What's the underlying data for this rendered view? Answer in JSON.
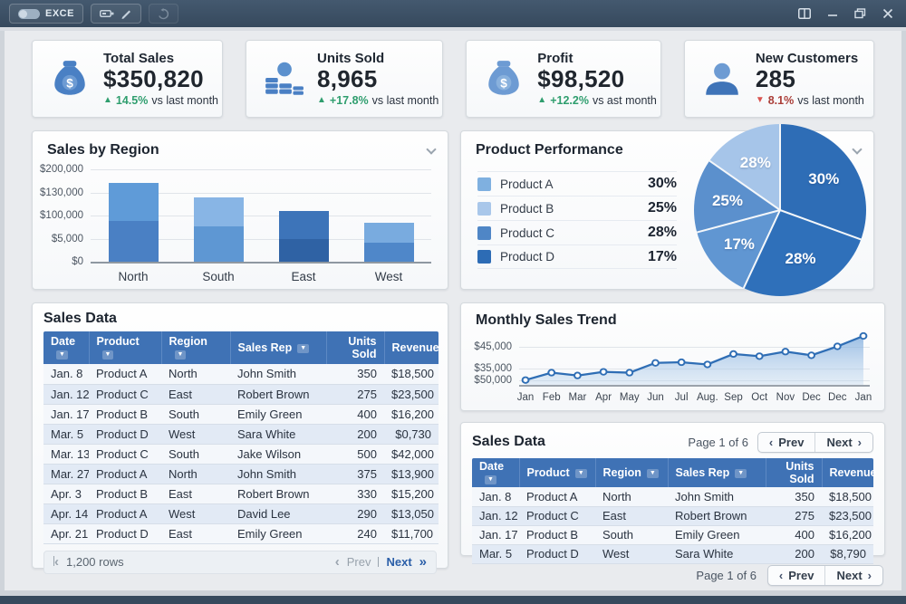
{
  "titlebar": {
    "app_label": "EXCE"
  },
  "kpis": [
    {
      "icon": "money-bag-icon",
      "label": "Total Sales",
      "value": "$350,820",
      "delta": "14.5%",
      "suffix": "vs last month",
      "direction": "up"
    },
    {
      "icon": "coin-stacks-icon",
      "label": "Units Sold",
      "value": "8,965",
      "delta": "+17.8%",
      "suffix": "vs last month",
      "direction": "up"
    },
    {
      "icon": "money-bag-icon",
      "label": "Profit",
      "value": "$98,520",
      "delta": "+12.2%",
      "suffix": "vs ast month",
      "direction": "up"
    },
    {
      "icon": "person-icon",
      "label": "New Customers",
      "value": "285",
      "delta": "8.1%",
      "suffix": "vs last month",
      "direction": "down"
    }
  ],
  "panels": {
    "bar": {
      "title": "Sales by Region"
    },
    "pie": {
      "title": "Product Performance"
    },
    "trend": {
      "title": "Monthly Sales Trend"
    },
    "table": {
      "title": "Sales Data"
    },
    "mini_table": {
      "title": "Sales Data"
    }
  },
  "chart_data": [
    {
      "type": "bar",
      "title": "Sales by Region",
      "stacked": true,
      "categories": [
        "North",
        "South",
        "East",
        "West"
      ],
      "series": [
        {
          "name": "segment-bottom",
          "values": [
            88000,
            76000,
            50000,
            42000
          ]
        },
        {
          "name": "segment-top",
          "values": [
            82000,
            64000,
            60000,
            43000
          ]
        }
      ],
      "totals": [
        170000,
        140000,
        110000,
        85000
      ],
      "y_ticks": [
        "$200,000",
        "$130,000",
        "$100,000",
        "$5,000",
        "$0"
      ],
      "ylim": [
        0,
        200000
      ],
      "bar_colors": [
        {
          "bottom": "#4a80c4",
          "top": "#5f9bd8"
        },
        {
          "bottom": "#5e97d3",
          "top": "#88b5e5"
        },
        {
          "bottom": "#2f62a4",
          "top": "#3d74b9"
        },
        {
          "bottom": "#4f87c9",
          "top": "#79abdf"
        }
      ],
      "grid": true
    },
    {
      "type": "pie",
      "title": "Product Performance",
      "legend": [
        {
          "label": "Product A",
          "value": "30%",
          "color": "#7fb0e0"
        },
        {
          "label": "Product B",
          "value": "25%",
          "color": "#a9c7ea"
        },
        {
          "label": "Product C",
          "value": "28%",
          "color": "#4f86c6"
        },
        {
          "label": "Product D",
          "value": "17%",
          "color": "#2d6cb5"
        }
      ],
      "slices": [
        {
          "label": "30%",
          "start_deg": 0,
          "end_deg": 110,
          "color": "#2e6db6"
        },
        {
          "label": "28%",
          "start_deg": 110,
          "end_deg": 205,
          "color": "#2f70ba"
        },
        {
          "label": "17%",
          "start_deg": 205,
          "end_deg": 255,
          "color": "#6096d2"
        },
        {
          "label": "25%",
          "start_deg": 255,
          "end_deg": 305,
          "color": "#5b90cd"
        },
        {
          "label": "28%",
          "start_deg": 305,
          "end_deg": 360,
          "color": "#a6c5e9"
        }
      ]
    },
    {
      "type": "area",
      "title": "Monthly Sales Trend",
      "x": [
        "Jan",
        "Feb",
        "Mar",
        "Apr",
        "May",
        "Jun",
        "Jul",
        "Aug.",
        "Sep",
        "Oct",
        "Nov",
        "Dec",
        "Dec",
        "Jan"
      ],
      "values": [
        30200,
        33600,
        32300,
        34000,
        33600,
        38100,
        38400,
        37400,
        42200,
        41200,
        43300,
        41600,
        45700,
        50500
      ],
      "y_ticks": [
        "$45,000",
        "$35,000",
        "$50,000"
      ],
      "ylim": [
        28000,
        53000
      ],
      "line_color": "#2f6eb5",
      "grid": true
    }
  ],
  "sales_table": {
    "columns": [
      {
        "label": "Date",
        "sortable": true
      },
      {
        "label": "Product",
        "sortable": true
      },
      {
        "label": "Region",
        "sortable": true
      },
      {
        "label": "Sales Rep",
        "sortable": true
      },
      {
        "label": "Units Sold",
        "sortable": false
      },
      {
        "label": "Revenue",
        "sortable": false
      }
    ],
    "rows": [
      [
        "Jan. 8",
        "Product A",
        "North",
        "John Smith",
        "350",
        "$18,500"
      ],
      [
        "Jan. 12",
        "Product C",
        "East",
        "Robert Brown",
        "275",
        "$23,500"
      ],
      [
        "Jan. 17",
        "Product B",
        "South",
        "Emily Green",
        "400",
        "$16,200"
      ],
      [
        "Mar. 5",
        "Product D",
        "West",
        "Sara White",
        "200",
        "$0,730"
      ],
      [
        "Mar. 13",
        "Product C",
        "South",
        "Jake Wilson",
        "500",
        "$42,000"
      ],
      [
        "Mar. 27",
        "Product A",
        "North",
        "John Smith",
        "375",
        "$13,900"
      ],
      [
        "Apr. 3",
        "Product B",
        "East",
        "Robert Brown",
        "330",
        "$15,200"
      ],
      [
        "Apr. 14",
        "Product A",
        "West",
        "David Lee",
        "290",
        "$13,050"
      ],
      [
        "Apr. 21",
        "Product D",
        "East",
        "Emily Green",
        "240",
        "$11,700"
      ]
    ],
    "footer": {
      "rows_count": "1,200 rows",
      "prev": "Prev",
      "next": "Next"
    }
  },
  "mini_table": {
    "columns": [
      {
        "label": "Date",
        "sortable": true
      },
      {
        "label": "Product",
        "sortable": true
      },
      {
        "label": "Region",
        "sortable": true
      },
      {
        "label": "Sales Rep",
        "sortable": true
      },
      {
        "label": "Units Sold",
        "sortable": false
      },
      {
        "label": "Revenue",
        "sortable": false
      }
    ],
    "rows": [
      [
        "Jan. 8",
        "Product A",
        "North",
        "John Smith",
        "350",
        "$18,500"
      ],
      [
        "Jan. 12",
        "Product C",
        "East",
        "Robert Brown",
        "275",
        "$23,500"
      ],
      [
        "Jan. 17",
        "Product B",
        "South",
        "Emily Green",
        "400",
        "$16,200"
      ],
      [
        "Mar. 5",
        "Product D",
        "West",
        "Sara White",
        "200",
        "$8,790"
      ]
    ],
    "page_label": "Page 1 of 6",
    "prev": "Prev",
    "next": "Next"
  },
  "bottom_pagination": {
    "page_label": "Page 1 of 6",
    "prev": "Prev",
    "next": "Next"
  },
  "colors": {
    "accent": "#2e6db6",
    "header_blue": "#3f72b5",
    "green": "#2f9e6e",
    "red": "#d9534f",
    "titlebar": "#3c5168"
  }
}
